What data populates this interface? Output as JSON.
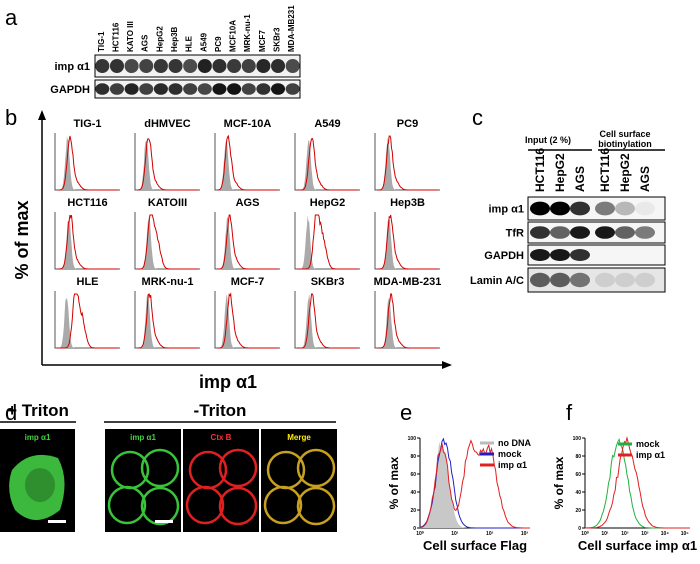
{
  "panel_a": {
    "label": "a",
    "lanes": [
      "TIG-1",
      "HCT116",
      "KATO III",
      "AGS",
      "HepG2",
      "Hep3B",
      "HLE",
      "A549",
      "PC9",
      "MCF10A",
      "MRK-nu-1",
      "MCF7",
      "SKBr3",
      "MDA-MB231"
    ],
    "rows": [
      "imp α1",
      "GAPDH"
    ]
  },
  "panel_b": {
    "label": "b",
    "y_label": "% of max",
    "x_label": "imp α1",
    "cells": [
      "TIG-1",
      "dHMVEC",
      "MCF-10A",
      "A549",
      "PC9",
      "HCT116",
      "KATOIII",
      "AGS",
      "HepG2",
      "Hep3B",
      "HLE",
      "MRK-nu-1",
      "MCF-7",
      "SKBr3",
      "MDA-MB-231"
    ]
  },
  "panel_c": {
    "label": "c",
    "group_1": "Input (2 %)",
    "group_2": [
      "Cell surface",
      "biotinylation"
    ],
    "lanes": [
      "HCT116",
      "HepG2",
      "AGS",
      "HCT116",
      "HepG2",
      "AGS"
    ],
    "rows": [
      "imp α1",
      "TfR",
      "GAPDH",
      "Lamin A/C"
    ]
  },
  "panel_d": {
    "label": "d",
    "plus": "+ Triton",
    "minus": "-Triton",
    "images": [
      "imp α1",
      "imp α1",
      "Ctx B",
      "Merge"
    ]
  },
  "panel_e": {
    "label": "e",
    "y_label": "% of max",
    "x_label": "Cell surface Flag",
    "yticks": [
      0,
      20,
      40,
      60,
      80,
      100
    ],
    "xticks": [
      "10⁰",
      "10¹",
      "10²",
      "10³"
    ],
    "legend": [
      "no DNA",
      "mock",
      "imp α1"
    ]
  },
  "panel_f": {
    "label": "f",
    "y_label": "% of max",
    "x_label": "Cell surface imp α1",
    "yticks": [
      0,
      20,
      40,
      60,
      80,
      100
    ],
    "xticks": [
      "10⁰",
      "10¹",
      "10²",
      "10³",
      "10⁴",
      "10⁵"
    ],
    "legend": [
      "mock",
      "imp α1"
    ]
  }
}
